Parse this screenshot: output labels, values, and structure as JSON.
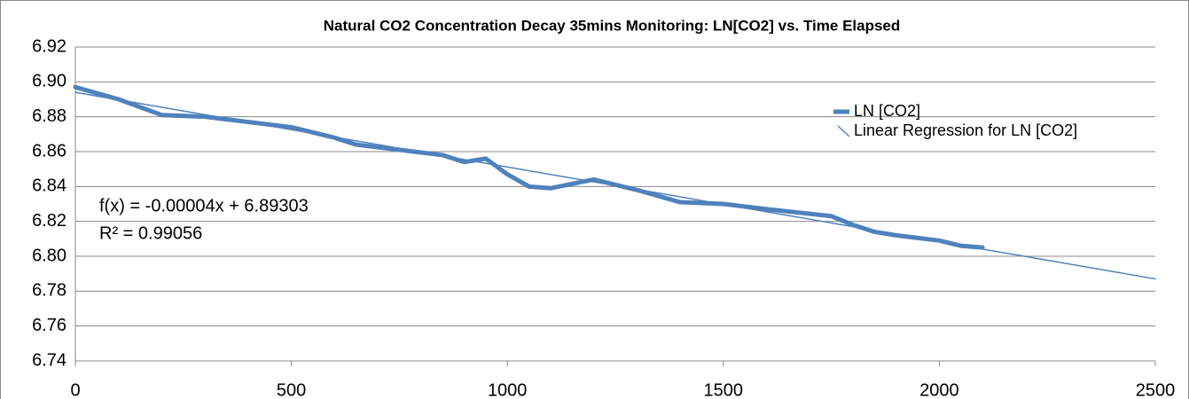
{
  "chart_data": {
    "type": "line",
    "title": "Natural CO2 Concentration Decay 35mins Monitoring: LN[CO2] vs. Time Elapsed",
    "annotations": [
      "f(x) = -0.00004x + 6.89303",
      "R² = 0.99056"
    ],
    "series": [
      {
        "name": "LN [CO2]",
        "color": "#4f81bd",
        "x": [
          0,
          100,
          200,
          300,
          400,
          500,
          600,
          650,
          750,
          850,
          900,
          950,
          1000,
          1050,
          1100,
          1200,
          1300,
          1400,
          1500,
          1600,
          1750,
          1800,
          1850,
          1900,
          2000,
          2050,
          2100
        ],
        "values": [
          6.897,
          6.89,
          6.881,
          6.88,
          6.877,
          6.874,
          6.868,
          6.864,
          6.861,
          6.858,
          6.854,
          6.856,
          6.847,
          6.84,
          6.839,
          6.844,
          6.838,
          6.831,
          6.83,
          6.827,
          6.823,
          6.818,
          6.814,
          6.812,
          6.809,
          6.806,
          6.805
        ]
      },
      {
        "name": "Linear Regression for LN [CO2]",
        "color": "#4f81bd",
        "x": [
          0,
          2500
        ],
        "values": [
          6.894,
          6.787
        ]
      }
    ],
    "xlim": [
      0,
      2500
    ],
    "xticks": [
      0,
      500,
      1000,
      1500,
      2000,
      2500
    ],
    "ylim": [
      6.74,
      6.92
    ],
    "yticks": [
      6.74,
      6.76,
      6.78,
      {
        "value": 6.8,
        "label": "6.80"
      },
      6.82,
      6.84,
      6.86,
      6.88,
      {
        "value": 6.9,
        "label": "6.90"
      },
      6.92
    ],
    "grid": true,
    "legend": "top-right"
  }
}
